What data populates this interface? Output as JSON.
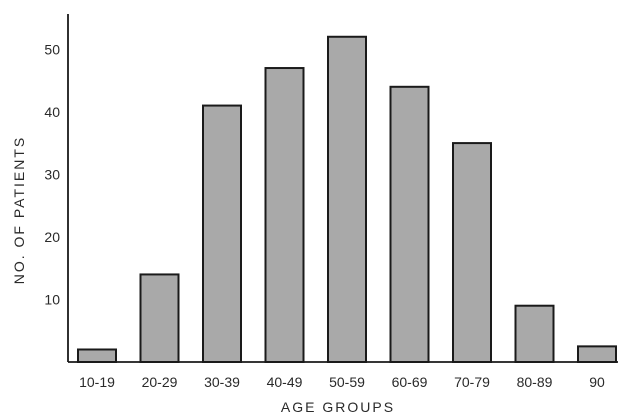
{
  "chart_data": {
    "type": "bar",
    "title": "",
    "xlabel": "AGE GROUPS",
    "ylabel": "NO. OF PATIENTS",
    "categories": [
      "10-19",
      "20-29",
      "30-39",
      "40-49",
      "50-59",
      "60-69",
      "70-79",
      "80-89",
      "90"
    ],
    "values": [
      2,
      14,
      41,
      47,
      52,
      44,
      35,
      9,
      2.5
    ],
    "yticks": [
      "10",
      "20",
      "30",
      "40",
      "50"
    ],
    "ylim": [
      0,
      55
    ],
    "grid": false,
    "legend": "none",
    "colors": {
      "bar_fill": "#a9a9a9",
      "bar_stroke": "#1a1a1a",
      "axis": "#1a1a1a",
      "text": "#2a2a2a"
    }
  }
}
